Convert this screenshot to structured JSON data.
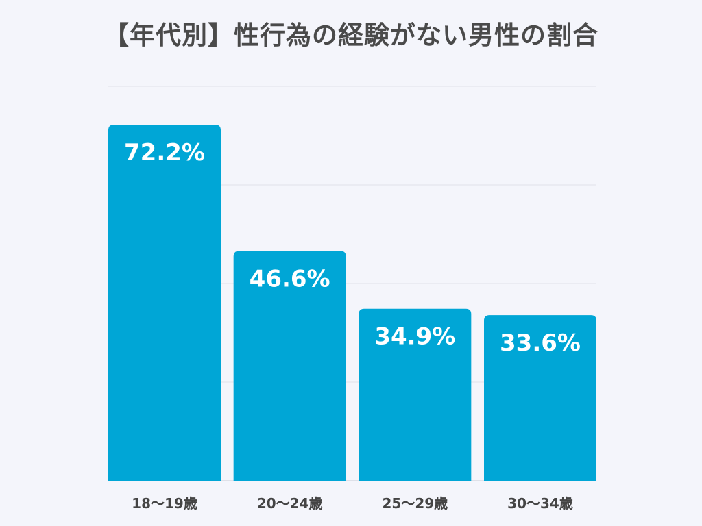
{
  "colors": {
    "background": "#f4f5fb",
    "bar": "#00a6d6",
    "bar_label": "#ffffff",
    "title": "#4a4a4a",
    "axis_text": "#444444",
    "grid": "#dfe1ea"
  },
  "chart_data": {
    "type": "bar",
    "title": "【年代別】性行為の経験がない男性の割合",
    "xlabel": "",
    "ylabel": "",
    "categories": [
      "18〜19歳",
      "20〜24歳",
      "25〜29歳",
      "30〜34歳"
    ],
    "series": [
      {
        "values": [
          72.2,
          46.6,
          34.9,
          33.6
        ],
        "value_labels": [
          "72.2%",
          "46.6%",
          "34.9%",
          "33.6%"
        ]
      }
    ],
    "ylim": [
      0,
      80
    ],
    "grid": true,
    "legend": "none"
  }
}
